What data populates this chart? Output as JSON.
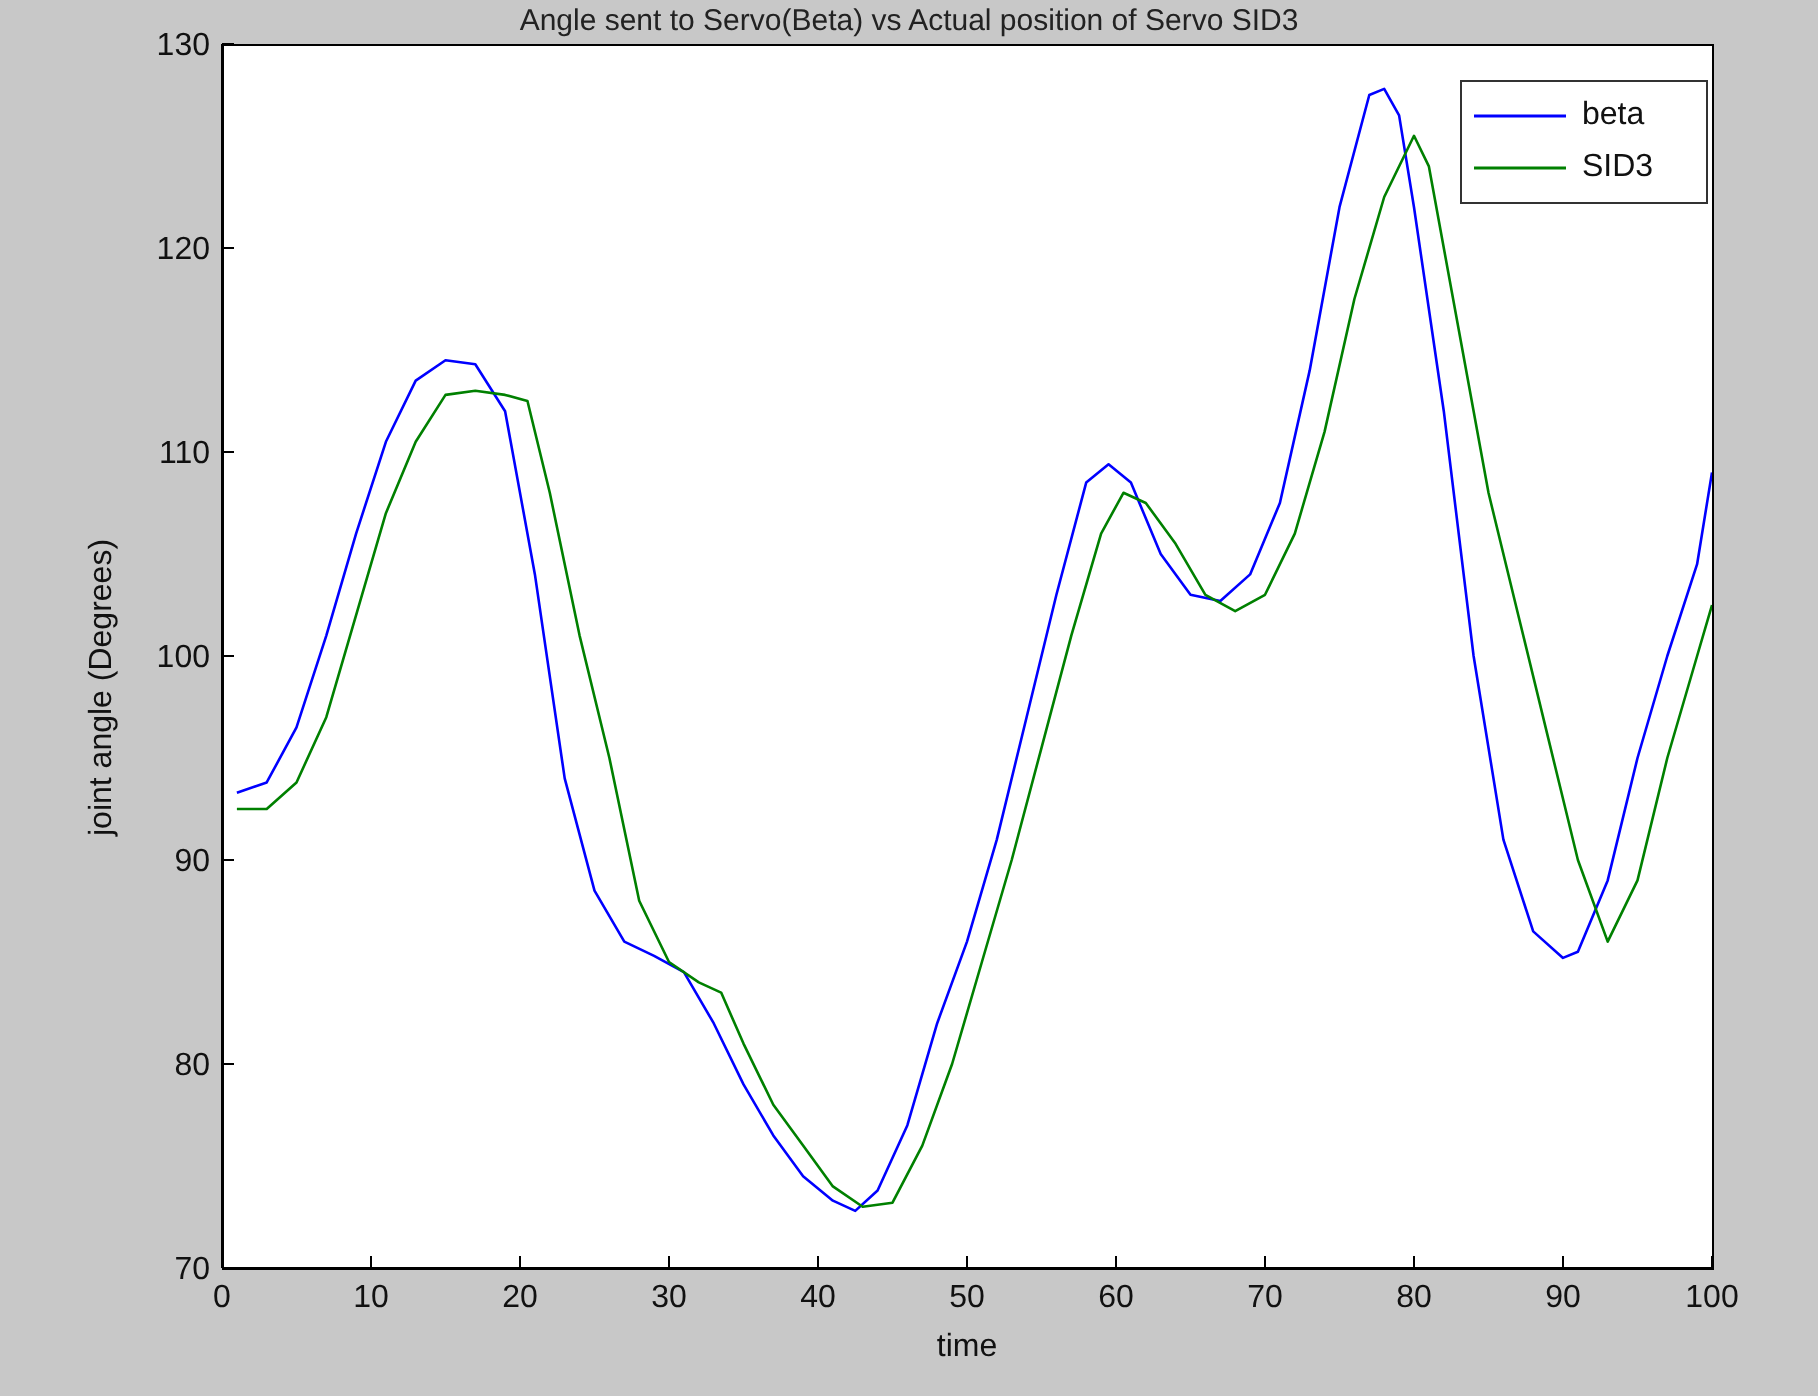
{
  "chart_data": {
    "type": "line",
    "title": "Angle sent to Servo(Beta) vs Actual position of Servo SID3",
    "xlabel": "time",
    "ylabel": "joint angle (Degrees)",
    "xlim": [
      0,
      100
    ],
    "xticks": [
      0,
      10,
      20,
      30,
      40,
      50,
      60,
      70,
      80,
      90,
      100
    ],
    "ylim": [
      70,
      130
    ],
    "yticks": [
      70,
      80,
      90,
      100,
      110,
      120,
      130
    ],
    "legend": "top right",
    "marker": "none",
    "line_style": "solid",
    "series": [
      {
        "name": "beta",
        "color": "#0000ff",
        "x": [
          1,
          3,
          5,
          7,
          9,
          11,
          13,
          15,
          17,
          19,
          21,
          23,
          25,
          27,
          29,
          31,
          33,
          35,
          37,
          39,
          41,
          42.5,
          44,
          46,
          48,
          50,
          52,
          54,
          56,
          58,
          59.5,
          61,
          63,
          65,
          67,
          69,
          71,
          73,
          75,
          77,
          78,
          79,
          80,
          82,
          84,
          86,
          88,
          90,
          91,
          93,
          95,
          97,
          99,
          100
        ],
        "values": [
          93.3,
          93.8,
          96.5,
          101,
          106,
          110.5,
          113.5,
          114.5,
          114.3,
          112,
          104,
          94,
          88.5,
          86,
          85.3,
          84.5,
          82,
          79,
          76.5,
          74.5,
          73.3,
          72.8,
          73.8,
          77,
          82,
          86,
          91,
          97,
          103,
          108.5,
          109.4,
          108.5,
          105,
          103,
          102.7,
          104,
          107.5,
          114,
          122,
          127.5,
          127.8,
          126.5,
          122,
          112,
          100,
          91,
          86.5,
          85.2,
          85.5,
          89,
          95,
          100,
          104.5,
          109
        ]
      },
      {
        "name": "SID3",
        "color": "#008000",
        "x": [
          1,
          3,
          5,
          7,
          9,
          11,
          13,
          15,
          17,
          19,
          20.5,
          22,
          24,
          26,
          28,
          30,
          32,
          33.5,
          35,
          37,
          39,
          41,
          43,
          45,
          47,
          49,
          51,
          53,
          55,
          57,
          59,
          60.5,
          62,
          64,
          66,
          68,
          70,
          72,
          74,
          76,
          78,
          80,
          81,
          83,
          85,
          87,
          89,
          91,
          93,
          95,
          97,
          99,
          100
        ],
        "values": [
          92.5,
          92.5,
          93.8,
          97,
          102,
          107,
          110.5,
          112.8,
          113,
          112.8,
          112.5,
          108,
          101,
          95,
          88,
          85,
          84,
          83.5,
          81,
          78,
          76,
          74,
          73,
          73.2,
          76,
          80,
          85,
          90,
          95.5,
          101,
          106,
          108,
          107.5,
          105.5,
          103,
          102.2,
          103,
          106,
          111,
          117.5,
          122.5,
          125.5,
          124,
          116,
          108,
          102,
          96,
          90,
          86,
          89,
          95,
          100,
          102.5
        ]
      }
    ]
  }
}
